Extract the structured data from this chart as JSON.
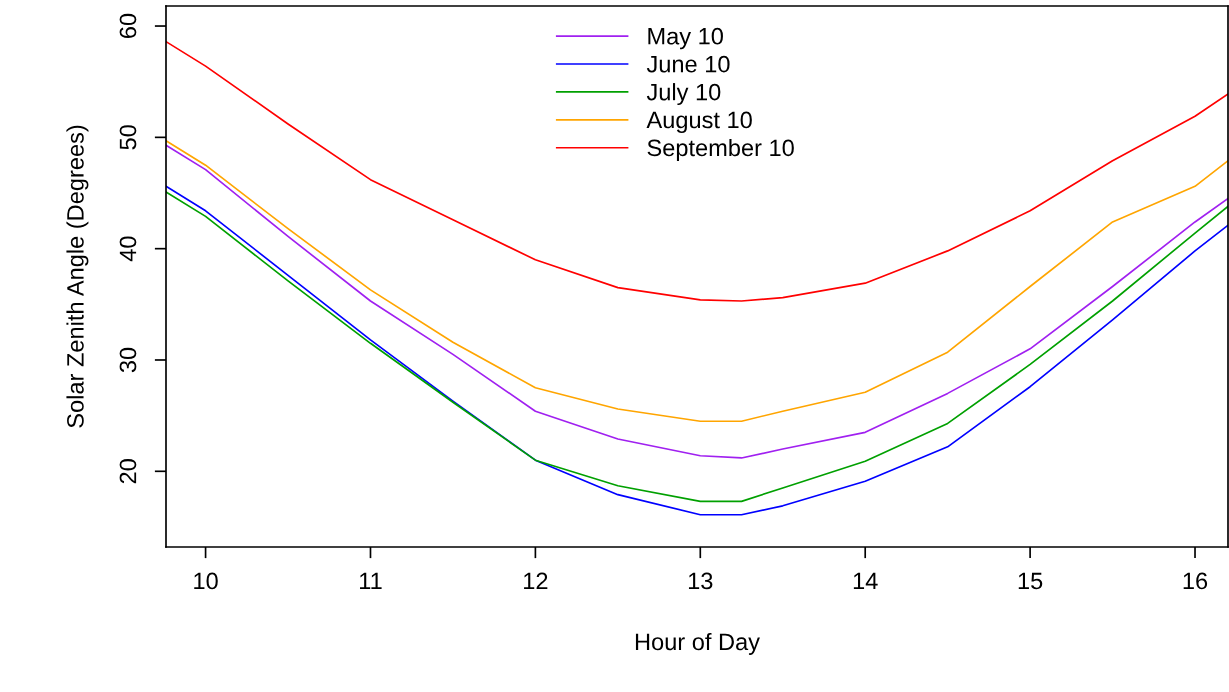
{
  "chart_data": {
    "type": "line",
    "xlabel": "Hour of Day",
    "ylabel": "Solar Zenith Angle (Degrees)",
    "x": [
      9.76,
      10,
      10.5,
      11,
      11.5,
      12,
      12.5,
      13,
      13.25,
      13.5,
      14,
      14.5,
      15,
      15.5,
      16,
      16.2
    ],
    "series": [
      {
        "name": "May 10",
        "color": "#a020f0",
        "values": [
          49.3,
          47.1,
          41.1,
          35.3,
          30.5,
          25.4,
          22.9,
          21.4,
          21.2,
          22.0,
          23.5,
          27.0,
          31.0,
          36.6,
          42.4,
          44.5
        ]
      },
      {
        "name": "June 10",
        "color": "#0000ff",
        "values": [
          45.6,
          43.4,
          37.6,
          31.8,
          26.3,
          21.0,
          17.9,
          16.1,
          16.1,
          16.9,
          19.1,
          22.2,
          27.6,
          33.6,
          39.8,
          42.1
        ]
      },
      {
        "name": "July 10",
        "color": "#00a000",
        "values": [
          45.1,
          42.9,
          37.1,
          31.5,
          26.2,
          21.0,
          18.7,
          17.3,
          17.3,
          18.5,
          20.9,
          24.3,
          29.6,
          35.3,
          41.4,
          43.8
        ]
      },
      {
        "name": "August 10",
        "color": "#ffa500",
        "values": [
          49.7,
          47.5,
          41.8,
          36.3,
          31.6,
          27.5,
          25.6,
          24.5,
          24.5,
          25.4,
          27.1,
          30.7,
          36.6,
          42.4,
          45.6,
          47.9
        ]
      },
      {
        "name": "September 10",
        "color": "#ff0000",
        "values": [
          58.6,
          56.4,
          51.2,
          46.2,
          42.6,
          39.0,
          36.5,
          35.4,
          35.3,
          35.6,
          36.9,
          39.8,
          43.4,
          47.9,
          51.9,
          53.9
        ]
      }
    ],
    "xlim": [
      9.76,
      16.2
    ],
    "ylim": [
      13.2,
      61.8
    ],
    "xticks": [
      10,
      11,
      12,
      13,
      14,
      15,
      16
    ],
    "yticks": [
      20,
      30,
      40,
      50,
      60
    ],
    "legend": "top",
    "grid": false,
    "marker": "none",
    "line_style": "solid"
  }
}
